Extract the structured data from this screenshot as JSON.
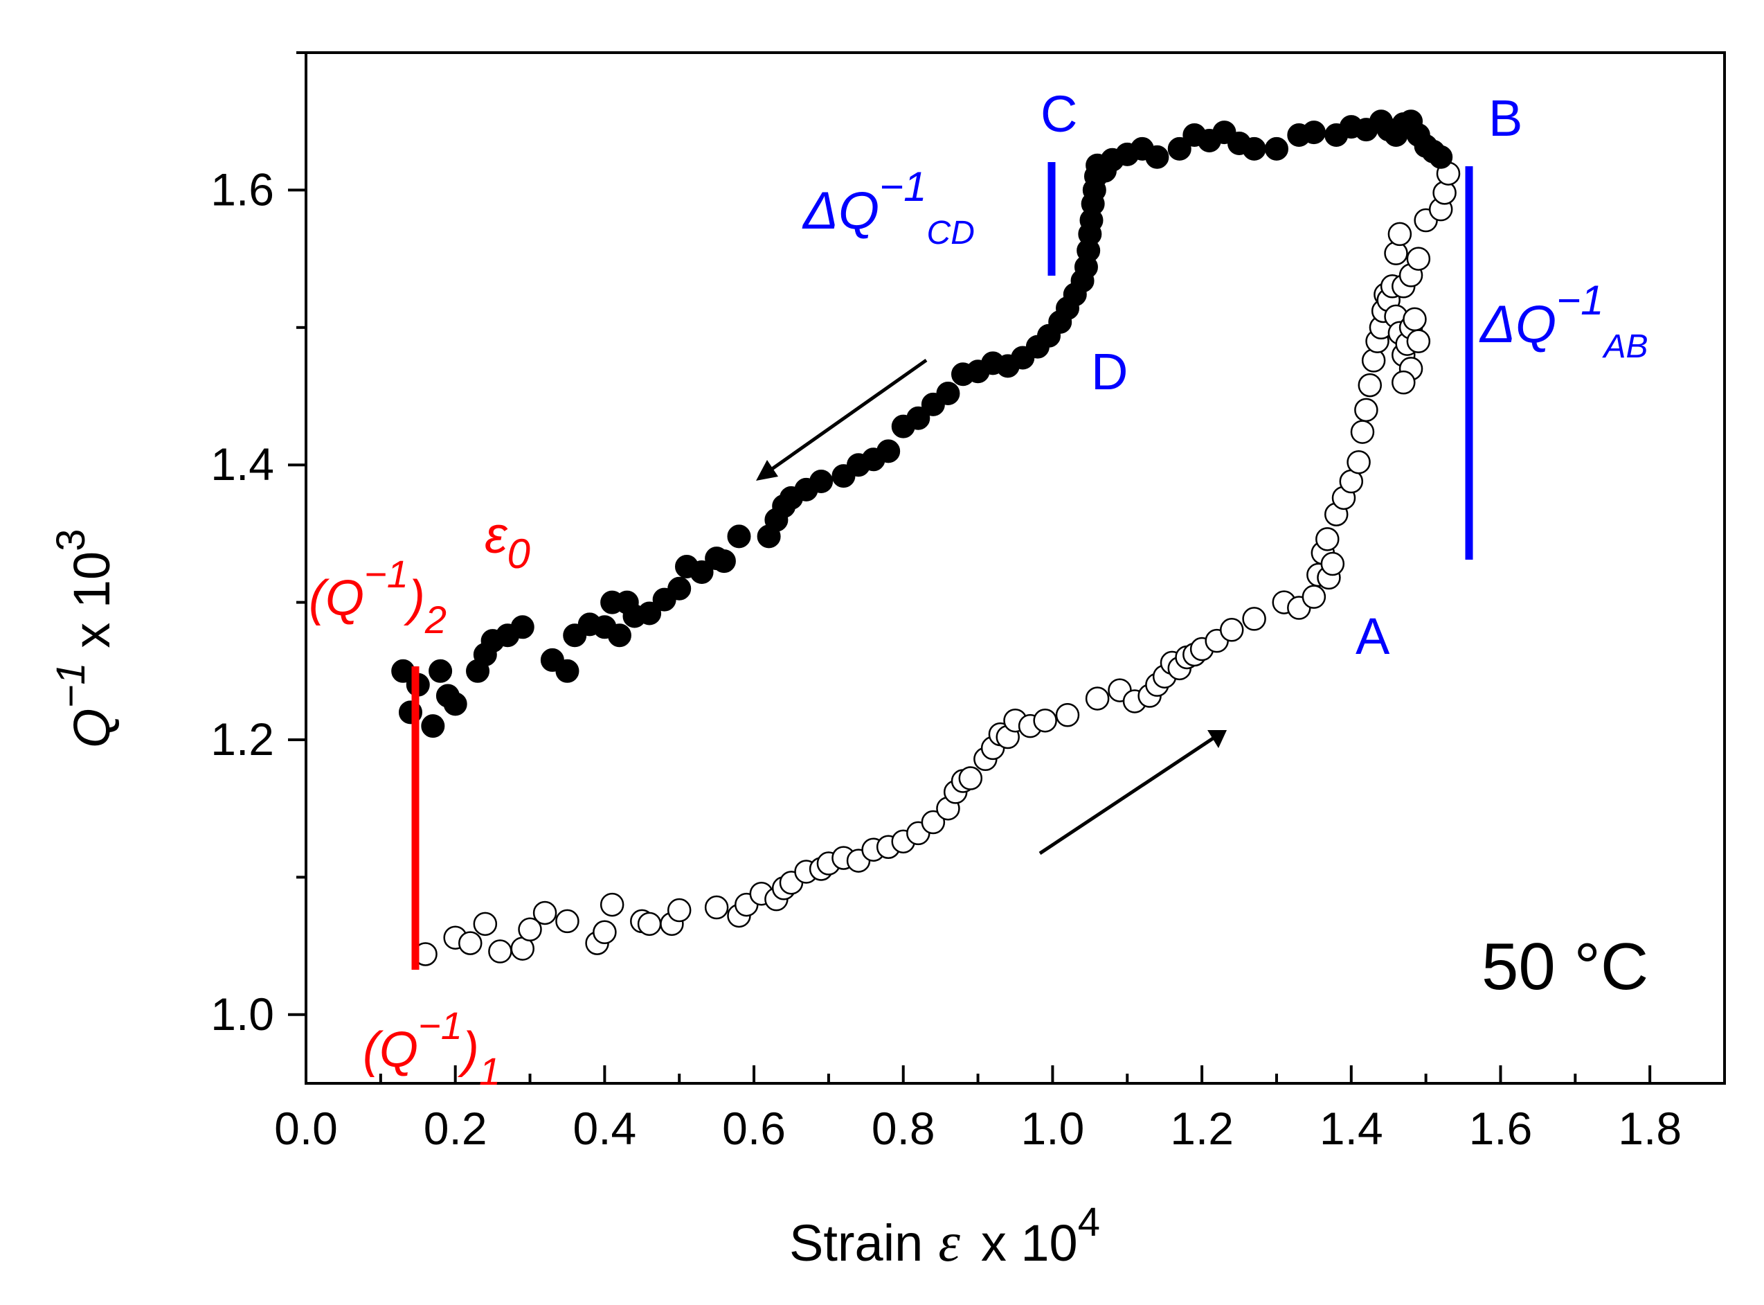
{
  "chart_data": {
    "type": "scatter",
    "xlabel": {
      "text": "Strain",
      "symbol": "ε",
      "suffix": "x 10",
      "exp": "4"
    },
    "ylabel": {
      "base": "Q",
      "sup1": "−1",
      "mid": " x 10",
      "sup2": "3"
    },
    "xlim": [
      0.0,
      1.9
    ],
    "ylim": [
      0.95,
      1.7
    ],
    "xticks": [
      "0.0",
      "0.2",
      "0.4",
      "0.6",
      "0.8",
      "1.0",
      "1.2",
      "1.4",
      "1.6",
      "1.8"
    ],
    "yticks": [
      "1.0",
      "1.2",
      "1.4",
      "1.6"
    ],
    "temperature_label": "50 °C",
    "annotations": {
      "A": "A",
      "B": "B",
      "C": "C",
      "D": "D",
      "dq_cd": {
        "delta": "ΔQ",
        "sup": "−1",
        "sub": "CD"
      },
      "dq_ab": {
        "delta": "ΔQ",
        "sup": "−1",
        "sub": "AB"
      },
      "q1": {
        "open": "(Q",
        "sup": "−1",
        "close": ")",
        "sub": "1"
      },
      "q2": {
        "open": "(Q",
        "sup": "−1",
        "close": ")",
        "sub": "2"
      },
      "eps0": {
        "base": "ε",
        "sub": "0"
      },
      "colors": {
        "blue": "#0000ff",
        "red": "#ff0000",
        "black": "#000000"
      }
    },
    "series": [
      {
        "marker": "open-circle",
        "points": [
          [
            0.16,
            1.044
          ],
          [
            0.2,
            1.056
          ],
          [
            0.22,
            1.052
          ],
          [
            0.24,
            1.066
          ],
          [
            0.26,
            1.046
          ],
          [
            0.29,
            1.048
          ],
          [
            0.3,
            1.062
          ],
          [
            0.32,
            1.074
          ],
          [
            0.35,
            1.068
          ],
          [
            0.39,
            1.052
          ],
          [
            0.4,
            1.06
          ],
          [
            0.41,
            1.08
          ],
          [
            0.45,
            1.068
          ],
          [
            0.46,
            1.066
          ],
          [
            0.49,
            1.066
          ],
          [
            0.5,
            1.076
          ],
          [
            0.55,
            1.078
          ],
          [
            0.58,
            1.072
          ],
          [
            0.59,
            1.08
          ],
          [
            0.61,
            1.088
          ],
          [
            0.63,
            1.084
          ],
          [
            0.64,
            1.092
          ],
          [
            0.65,
            1.096
          ],
          [
            0.67,
            1.104
          ],
          [
            0.69,
            1.106
          ],
          [
            0.7,
            1.11
          ],
          [
            0.72,
            1.114
          ],
          [
            0.74,
            1.112
          ],
          [
            0.76,
            1.12
          ],
          [
            0.78,
            1.122
          ],
          [
            0.8,
            1.126
          ],
          [
            0.82,
            1.132
          ],
          [
            0.84,
            1.14
          ],
          [
            0.86,
            1.15
          ],
          [
            0.87,
            1.162
          ],
          [
            0.88,
            1.17
          ],
          [
            0.89,
            1.172
          ],
          [
            0.91,
            1.186
          ],
          [
            0.92,
            1.194
          ],
          [
            0.93,
            1.204
          ],
          [
            0.94,
            1.202
          ],
          [
            0.95,
            1.214
          ],
          [
            0.97,
            1.21
          ],
          [
            0.99,
            1.214
          ],
          [
            1.02,
            1.218
          ],
          [
            1.06,
            1.23
          ],
          [
            1.09,
            1.236
          ],
          [
            1.11,
            1.228
          ],
          [
            1.13,
            1.232
          ],
          [
            1.14,
            1.24
          ],
          [
            1.15,
            1.246
          ],
          [
            1.16,
            1.256
          ],
          [
            1.17,
            1.252
          ],
          [
            1.18,
            1.26
          ],
          [
            1.19,
            1.262
          ],
          [
            1.2,
            1.266
          ],
          [
            1.22,
            1.272
          ],
          [
            1.24,
            1.28
          ],
          [
            1.27,
            1.288
          ],
          [
            1.31,
            1.3
          ],
          [
            1.33,
            1.296
          ],
          [
            1.35,
            1.304
          ],
          [
            1.356,
            1.32
          ],
          [
            1.362,
            1.336
          ],
          [
            1.368,
            1.346
          ],
          [
            1.37,
            1.318
          ],
          [
            1.375,
            1.328
          ],
          [
            1.38,
            1.364
          ],
          [
            1.39,
            1.376
          ],
          [
            1.4,
            1.388
          ],
          [
            1.41,
            1.402
          ],
          [
            1.415,
            1.424
          ],
          [
            1.42,
            1.44
          ],
          [
            1.425,
            1.458
          ],
          [
            1.43,
            1.476
          ],
          [
            1.435,
            1.49
          ],
          [
            1.44,
            1.5
          ],
          [
            1.443,
            1.512
          ],
          [
            1.446,
            1.524
          ],
          [
            1.45,
            1.52
          ],
          [
            1.455,
            1.53
          ],
          [
            1.46,
            1.508
          ],
          [
            1.465,
            1.496
          ],
          [
            1.47,
            1.48
          ],
          [
            1.475,
            1.488
          ],
          [
            1.48,
            1.5
          ],
          [
            1.485,
            1.506
          ],
          [
            1.49,
            1.49
          ],
          [
            1.48,
            1.47
          ],
          [
            1.47,
            1.46
          ],
          [
            1.46,
            1.554
          ],
          [
            1.465,
            1.568
          ],
          [
            1.47,
            1.53
          ],
          [
            1.48,
            1.538
          ],
          [
            1.49,
            1.55
          ],
          [
            1.5,
            1.578
          ],
          [
            1.52,
            1.586
          ],
          [
            1.525,
            1.598
          ],
          [
            1.53,
            1.612
          ]
        ]
      },
      {
        "marker": "filled-circle",
        "points": [
          [
            0.13,
            1.25
          ],
          [
            0.14,
            1.22
          ],
          [
            0.15,
            1.24
          ],
          [
            0.17,
            1.21
          ],
          [
            0.18,
            1.25
          ],
          [
            0.19,
            1.232
          ],
          [
            0.2,
            1.226
          ],
          [
            0.23,
            1.25
          ],
          [
            0.24,
            1.262
          ],
          [
            0.25,
            1.272
          ],
          [
            0.27,
            1.276
          ],
          [
            0.29,
            1.282
          ],
          [
            0.33,
            1.258
          ],
          [
            0.35,
            1.25
          ],
          [
            0.36,
            1.276
          ],
          [
            0.38,
            1.284
          ],
          [
            0.4,
            1.282
          ],
          [
            0.41,
            1.3
          ],
          [
            0.42,
            1.276
          ],
          [
            0.43,
            1.3
          ],
          [
            0.44,
            1.29
          ],
          [
            0.46,
            1.292
          ],
          [
            0.48,
            1.302
          ],
          [
            0.5,
            1.31
          ],
          [
            0.51,
            1.326
          ],
          [
            0.53,
            1.322
          ],
          [
            0.55,
            1.332
          ],
          [
            0.56,
            1.33
          ],
          [
            0.58,
            1.348
          ],
          [
            0.62,
            1.348
          ],
          [
            0.63,
            1.36
          ],
          [
            0.64,
            1.37
          ],
          [
            0.65,
            1.376
          ],
          [
            0.67,
            1.382
          ],
          [
            0.69,
            1.388
          ],
          [
            0.72,
            1.392
          ],
          [
            0.74,
            1.4
          ],
          [
            0.76,
            1.404
          ],
          [
            0.78,
            1.41
          ],
          [
            0.8,
            1.428
          ],
          [
            0.82,
            1.434
          ],
          [
            0.84,
            1.444
          ],
          [
            0.86,
            1.452
          ],
          [
            0.88,
            1.466
          ],
          [
            0.9,
            1.468
          ],
          [
            0.92,
            1.474
          ],
          [
            0.94,
            1.472
          ],
          [
            0.96,
            1.478
          ],
          [
            0.98,
            1.486
          ],
          [
            0.995,
            1.494
          ],
          [
            1.01,
            1.504
          ],
          [
            1.02,
            1.514
          ],
          [
            1.03,
            1.524
          ],
          [
            1.04,
            1.534
          ],
          [
            1.045,
            1.544
          ],
          [
            1.048,
            1.556
          ],
          [
            1.05,
            1.568
          ],
          [
            1.052,
            1.578
          ],
          [
            1.054,
            1.59
          ],
          [
            1.056,
            1.6
          ],
          [
            1.058,
            1.61
          ],
          [
            1.06,
            1.618
          ],
          [
            1.07,
            1.614
          ],
          [
            1.08,
            1.622
          ],
          [
            1.1,
            1.626
          ],
          [
            1.12,
            1.63
          ],
          [
            1.14,
            1.624
          ],
          [
            1.17,
            1.63
          ],
          [
            1.19,
            1.64
          ],
          [
            1.21,
            1.636
          ],
          [
            1.23,
            1.642
          ],
          [
            1.25,
            1.634
          ],
          [
            1.27,
            1.63
          ],
          [
            1.3,
            1.63
          ],
          [
            1.33,
            1.64
          ],
          [
            1.35,
            1.642
          ],
          [
            1.38,
            1.64
          ],
          [
            1.4,
            1.646
          ],
          [
            1.42,
            1.644
          ],
          [
            1.44,
            1.65
          ],
          [
            1.45,
            1.644
          ],
          [
            1.46,
            1.64
          ],
          [
            1.47,
            1.648
          ],
          [
            1.48,
            1.65
          ],
          [
            1.49,
            1.64
          ],
          [
            1.5,
            1.632
          ],
          [
            1.51,
            1.628
          ],
          [
            1.52,
            1.624
          ]
        ]
      }
    ]
  }
}
